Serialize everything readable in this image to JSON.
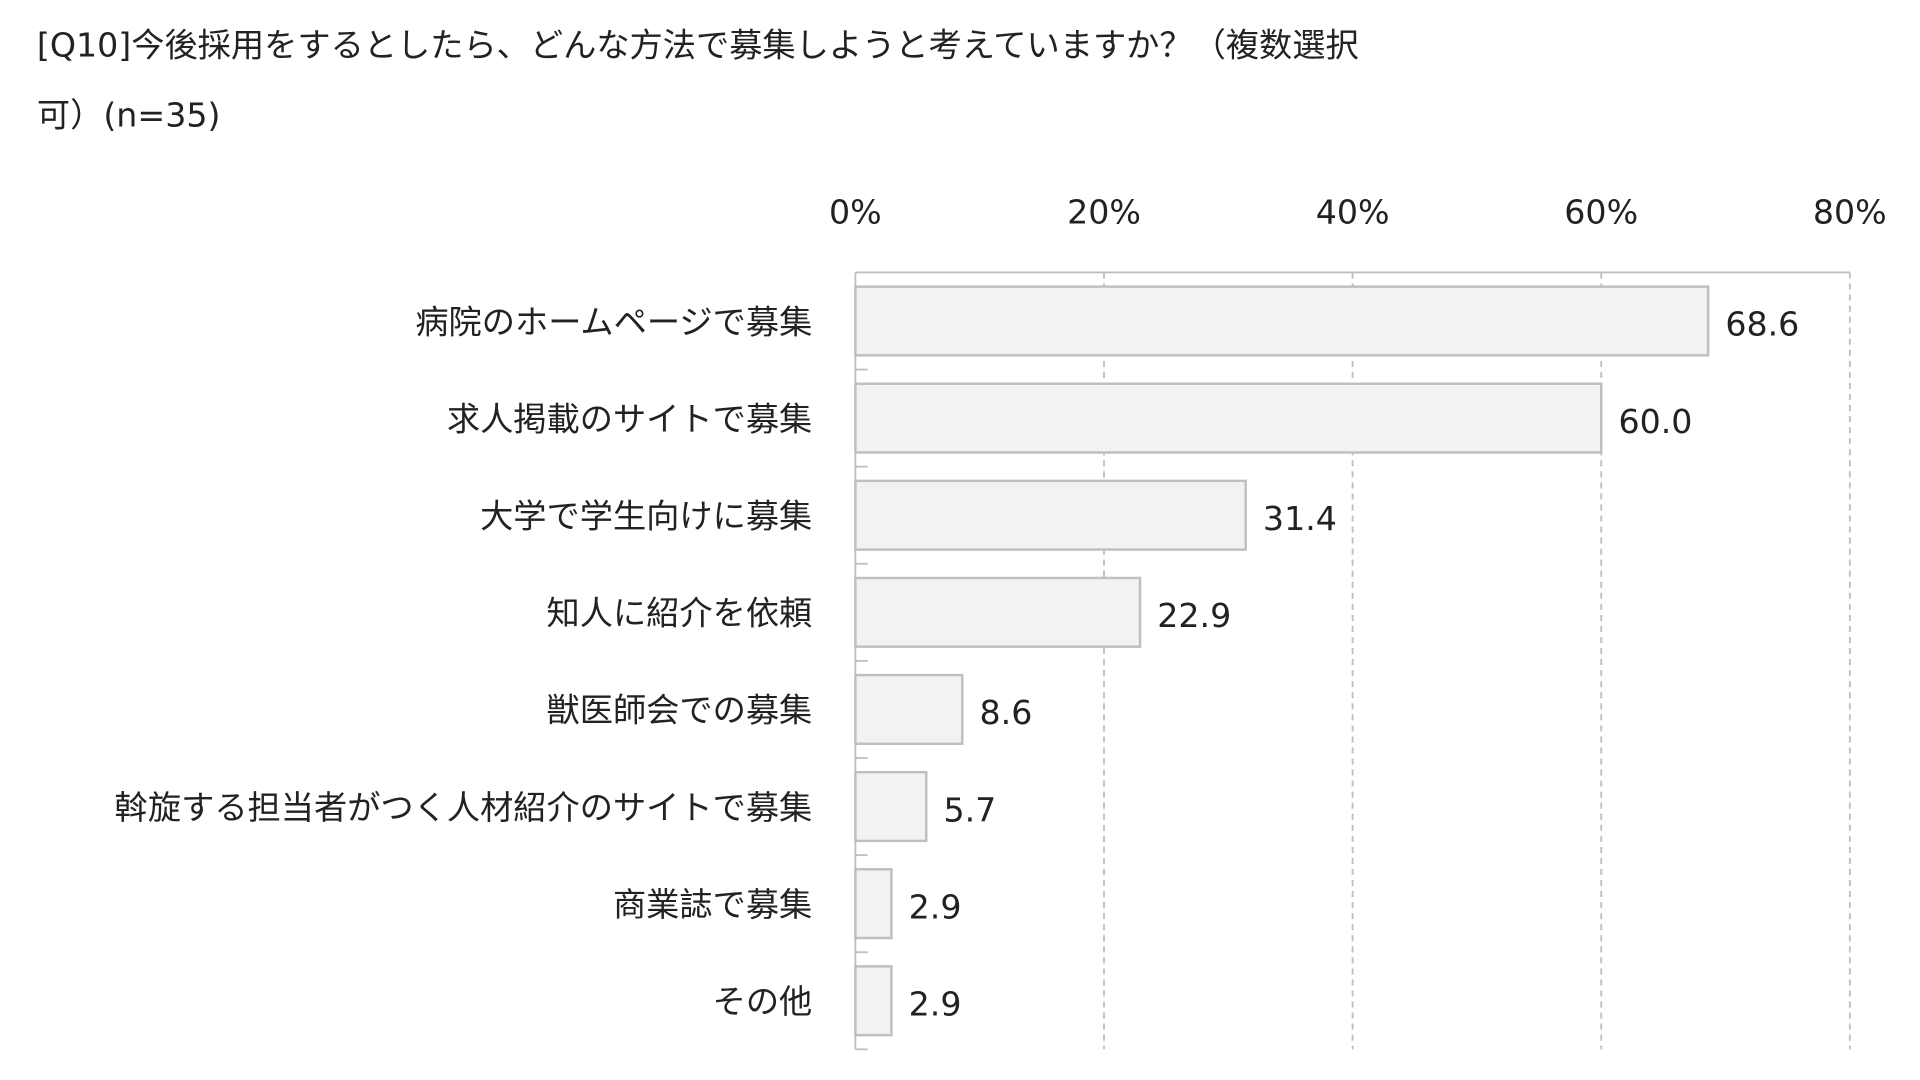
{
  "chart_data": {
    "type": "bar",
    "orientation": "horizontal",
    "title_line1": "[Q10]今後採用をするとしたら、どんな方法で募集しようと考えていますか？（複数選択",
    "title_line2": "可）(n=35)",
    "categories": [
      "病院のホームページで募集",
      "求人掲載のサイトで募集",
      "大学で学生向けに募集",
      "知人に紹介を依頼",
      "獣医師会での募集",
      "斡旋する担当者がつく人材紹介のサイトで募集",
      "商業誌で募集",
      "その他"
    ],
    "values": [
      68.6,
      60.0,
      31.4,
      22.9,
      8.6,
      5.7,
      2.9,
      2.9
    ],
    "value_labels": [
      "68.6",
      "60.0",
      "31.4",
      "22.9",
      "8.6",
      "5.7",
      "2.9",
      "2.9"
    ],
    "xlim": [
      0,
      80
    ],
    "x_ticks": [
      0,
      20,
      40,
      60,
      80
    ],
    "x_tick_labels": [
      "0%",
      "20%",
      "40%",
      "60%",
      "80%"
    ],
    "x_axis_position": "top",
    "grid": "vertical dashed",
    "bar_fill": "#f2f2f2",
    "bar_stroke": "#bfbfbf",
    "grid_color": "#bfbfbf"
  }
}
